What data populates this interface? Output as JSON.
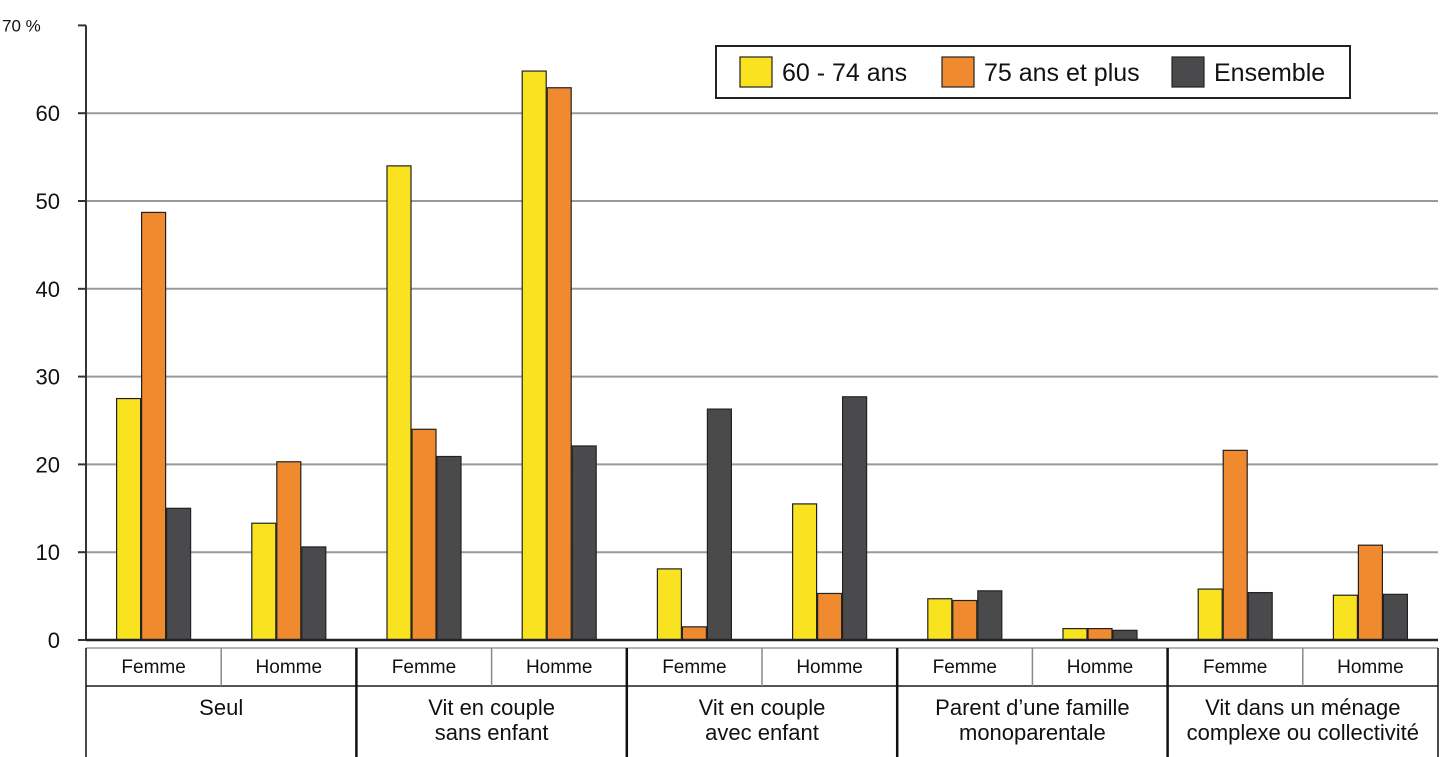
{
  "chart_data": {
    "type": "bar",
    "y_unit_label": "70 %",
    "ylim": [
      0,
      70
    ],
    "yticks": [
      0,
      10,
      20,
      30,
      40,
      50,
      60
    ],
    "grid": true,
    "legend_position": "top-right",
    "groups": [
      {
        "label_lines": [
          "Seul"
        ],
        "subcategories": [
          "Femme",
          "Homme"
        ]
      },
      {
        "label_lines": [
          "Vit en couple",
          "sans enfant"
        ],
        "subcategories": [
          "Femme",
          "Homme"
        ]
      },
      {
        "label_lines": [
          "Vit en couple",
          "avec enfant"
        ],
        "subcategories": [
          "Femme",
          "Homme"
        ]
      },
      {
        "label_lines": [
          "Parent d’une famille",
          "monoparentale"
        ],
        "subcategories": [
          "Femme",
          "Homme"
        ]
      },
      {
        "label_lines": [
          "Vit dans un ménage",
          "complexe ou collectivité"
        ],
        "subcategories": [
          "Femme",
          "Homme"
        ]
      }
    ],
    "series": [
      {
        "name": "60 - 74 ans",
        "color": "#f9e21f",
        "values": [
          27.5,
          13.3,
          54,
          64.8,
          8.1,
          15.5,
          4.7,
          1.3,
          5.8,
          5.1
        ]
      },
      {
        "name": "75 ans et plus",
        "color": "#f08a2e",
        "values": [
          48.7,
          20.3,
          24,
          62.9,
          1.5,
          5.3,
          4.5,
          1.3,
          21.6,
          10.8
        ]
      },
      {
        "name": "Ensemble",
        "color": "#4a4a4c",
        "values": [
          15,
          10.6,
          20.9,
          22.1,
          26.3,
          27.7,
          5.6,
          1.1,
          5.4,
          5.2
        ]
      }
    ]
  }
}
